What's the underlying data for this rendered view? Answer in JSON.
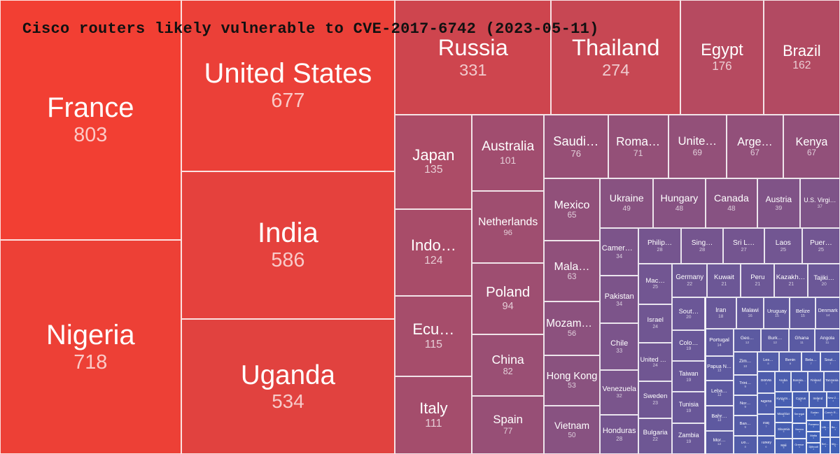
{
  "chart_data": {
    "type": "treemap",
    "title": "Cisco routers likely vulnerable to CVE-2017-6742 (2023-05-11)",
    "items": [
      {
        "name": "France",
        "label": "France",
        "value": 803
      },
      {
        "name": "Nigeria",
        "label": "Nigeria",
        "value": 718
      },
      {
        "name": "United States",
        "label": "United States",
        "value": 677
      },
      {
        "name": "India",
        "label": "India",
        "value": 586
      },
      {
        "name": "Uganda",
        "label": "Uganda",
        "value": 534
      },
      {
        "name": "Russia",
        "label": "Russia",
        "value": 331
      },
      {
        "name": "Thailand",
        "label": "Thailand",
        "value": 274
      },
      {
        "name": "Egypt",
        "label": "Egypt",
        "value": 176
      },
      {
        "name": "Brazil",
        "label": "Brazil",
        "value": 162
      },
      {
        "name": "Japan",
        "label": "Japan",
        "value": 135
      },
      {
        "name": "Indonesia",
        "label": "Indo…",
        "value": 124
      },
      {
        "name": "Ecuador",
        "label": "Ecu…",
        "value": 115
      },
      {
        "name": "Italy",
        "label": "Italy",
        "value": 111
      },
      {
        "name": "Australia",
        "label": "Australia",
        "value": 101
      },
      {
        "name": "Netherlands",
        "label": "Netherlands",
        "value": 96
      },
      {
        "name": "Poland",
        "label": "Poland",
        "value": 94
      },
      {
        "name": "China",
        "label": "China",
        "value": 82
      },
      {
        "name": "Spain",
        "label": "Spain",
        "value": 77
      },
      {
        "name": "Saudi Arabia",
        "label": "Saudi…",
        "value": 76
      },
      {
        "name": "Romania",
        "label": "Roma…",
        "value": 71
      },
      {
        "name": "United Kingdom",
        "label": "Unite…",
        "value": 69
      },
      {
        "name": "Argentina",
        "label": "Arge…",
        "value": 67
      },
      {
        "name": "Kenya",
        "label": "Kenya",
        "value": 67
      },
      {
        "name": "Mexico",
        "label": "Mexico",
        "value": 65
      },
      {
        "name": "Malaysia",
        "label": "Mala…",
        "value": 63
      },
      {
        "name": "Mozambique",
        "label": "Mozambi…",
        "value": 56
      },
      {
        "name": "Hong Kong",
        "label": "Hong Kong",
        "value": 53
      },
      {
        "name": "Vietnam",
        "label": "Vietnam",
        "value": 50
      },
      {
        "name": "Ukraine",
        "label": "Ukraine",
        "value": 49
      },
      {
        "name": "Hungary",
        "label": "Hungary",
        "value": 48
      },
      {
        "name": "Canada",
        "label": "Canada",
        "value": 48
      },
      {
        "name": "Austria",
        "label": "Austria",
        "value": 39
      },
      {
        "name": "U.S. Virgin Islands",
        "label": "U.S. Virgi…",
        "value": 37
      },
      {
        "name": "Cameroon",
        "label": "Cameroon",
        "value": 34
      },
      {
        "name": "Pakistan",
        "label": "Pakistan",
        "value": 34
      },
      {
        "name": "Chile",
        "label": "Chile",
        "value": 33
      },
      {
        "name": "Venezuela",
        "label": "Venezuela",
        "value": 32
      },
      {
        "name": "Honduras",
        "label": "Honduras",
        "value": 28
      },
      {
        "name": "Philippines",
        "label": "Philip…",
        "value": 28
      },
      {
        "name": "Singapore",
        "label": "Sing…",
        "value": 28
      },
      {
        "name": "Sri Lanka",
        "label": "Sri L…",
        "value": 27
      },
      {
        "name": "Laos",
        "label": "Laos",
        "value": 25
      },
      {
        "name": "Puerto Rico",
        "label": "Puer…",
        "value": 25
      },
      {
        "name": "Macao",
        "label": "Mac…",
        "value": 25
      },
      {
        "name": "Israel",
        "label": "Israel",
        "value": 24
      },
      {
        "name": "United Arab Emirates",
        "label": "United A…",
        "value": 24
      },
      {
        "name": "Sweden",
        "label": "Sweden",
        "value": 23
      },
      {
        "name": "Bulgaria",
        "label": "Bulgaria",
        "value": 22
      },
      {
        "name": "Germany",
        "label": "Germany",
        "value": 22
      },
      {
        "name": "Kuwait",
        "label": "Kuwait",
        "value": 21
      },
      {
        "name": "Peru",
        "label": "Peru",
        "value": 21
      },
      {
        "name": "Kazakhstan",
        "label": "Kazakhs…",
        "value": 21
      },
      {
        "name": "Tajikistan",
        "label": "Tajiki…",
        "value": 20
      },
      {
        "name": "South Africa",
        "label": "Sout…",
        "value": 20
      },
      {
        "name": "Colombia",
        "label": "Colo…",
        "value": 19
      },
      {
        "name": "Taiwan",
        "label": "Taiwan",
        "value": 19
      },
      {
        "name": "Tunisia",
        "label": "Tunisia",
        "value": 19
      },
      {
        "name": "Zambia",
        "label": "Zambia",
        "value": 19
      },
      {
        "name": "Iran",
        "label": "Iran",
        "value": 18
      },
      {
        "name": "Malawi",
        "label": "Malawi",
        "value": 16
      },
      {
        "name": "Uruguay",
        "label": "Uruguay",
        "value": 15
      },
      {
        "name": "Belize",
        "label": "Belize",
        "value": 15
      },
      {
        "name": "Denmark",
        "label": "Denmark",
        "value": 14
      },
      {
        "name": "Portugal",
        "label": "Portugal",
        "value": 14
      },
      {
        "name": "Papua New Guinea",
        "label": "Papua N…",
        "value": 13
      },
      {
        "name": "Lebanon",
        "label": "Leba…",
        "value": 13
      },
      {
        "name": "Bahrain",
        "label": "Bahr…",
        "value": 13
      },
      {
        "name": "Morocco",
        "label": "Mor…",
        "value": 12
      },
      {
        "name": "Georgia",
        "label": "Geo…",
        "value": 12
      },
      {
        "name": "Burkina Faso",
        "label": "Burk…",
        "value": 12
      },
      {
        "name": "Ghana",
        "label": "Ghana",
        "value": 11
      },
      {
        "name": "Angola",
        "label": "Angola",
        "value": 11
      },
      {
        "name": "Zimbabwe",
        "label": "Zim…",
        "value": 10
      },
      {
        "name": "Trinidad and Tobago",
        "label": "Trini…",
        "value": 9
      },
      {
        "name": "Norway",
        "label": "Nor…",
        "value": 9
      },
      {
        "name": "Bangladesh",
        "label": "Ban…",
        "value": 9
      },
      {
        "name": "Dominican Republic",
        "label": "Do…",
        "value": 8
      },
      {
        "name": "Lesotho",
        "label": "Les…",
        "value": 8
      },
      {
        "name": "Benin",
        "label": "Benin",
        "value": 8
      },
      {
        "name": "Belarus",
        "label": "Bela…",
        "value": 7
      },
      {
        "name": "South Korea",
        "label": "Sout…",
        "value": 7
      },
      {
        "name": "Bolivia",
        "label": "Bolivia",
        "value": 7
      },
      {
        "name": "Algeria",
        "label": "Algeria",
        "value": 7
      },
      {
        "name": "Iraq",
        "label": "Iraq",
        "value": 7
      },
      {
        "name": "Turkey",
        "label": "Turkey",
        "value": 6
      },
      {
        "name": "Aruba",
        "label": "Aruba",
        "value": 6
      },
      {
        "name": "Bosnia and Herzegovina",
        "label": "Bosnia…",
        "value": 6
      },
      {
        "name": "Finland",
        "label": "Finland",
        "value": 6
      },
      {
        "name": "Tanzania",
        "label": "Tanzania",
        "value": 6
      },
      {
        "name": "Kyrgyzstan",
        "label": "Kyrgyzs…",
        "value": 5
      },
      {
        "name": "Mauritius",
        "label": "Mauritius",
        "value": 5
      },
      {
        "name": "Slovenia",
        "label": "Slovenia",
        "value": 5
      },
      {
        "name": "Mali",
        "label": "Mali",
        "value": 5
      },
      {
        "name": "Cyprus",
        "label": "Cyprus",
        "value": 5
      },
      {
        "name": "Ireland",
        "label": "Ireland",
        "value": 5
      },
      {
        "name": "New Zealand",
        "label": "New Z…",
        "value": 4
      },
      {
        "name": "Senegal",
        "label": "Senegal",
        "value": 4
      },
      {
        "name": "Yemen",
        "label": "Yemen",
        "value": 4
      },
      {
        "name": "Greece",
        "label": "Greece",
        "value": 4
      },
      {
        "name": "Sudan",
        "label": "Sudan",
        "value": 4
      },
      {
        "name": "Czech Republic",
        "label": "Czech R…",
        "value": 4
      },
      {
        "name": "Panama",
        "label": "Panama",
        "value": 3
      },
      {
        "name": "Malta",
        "label": "Malta",
        "value": 3
      },
      {
        "name": "Djibouti",
        "label": "Djibouti",
        "value": 3
      },
      {
        "name": "Lithuania",
        "label": "Lithuania",
        "value": 3
      },
      {
        "name": "Bahamas",
        "label": "Bahamas",
        "value": 3
      },
      {
        "name": "Belgium",
        "label": "Belgium",
        "value": 3
      },
      {
        "name": "Afghanistan",
        "label": "Afghan…",
        "value": 3
      }
    ],
    "color_scale": {
      "low": "#3f5fb7",
      "high": "#f23f33"
    }
  }
}
